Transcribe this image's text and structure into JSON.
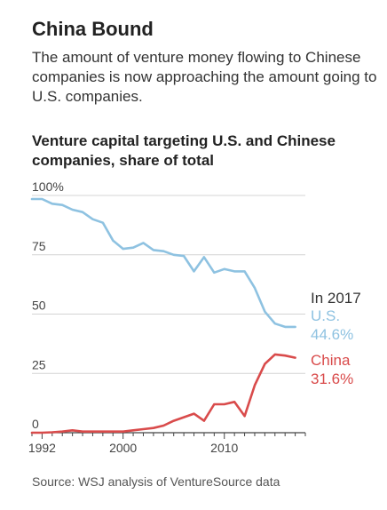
{
  "header": {
    "title": "China Bound",
    "subtitle": "The amount of venture money flowing to Chinese companies is now approaching the amount going to U.S. companies."
  },
  "chart_data": {
    "type": "line",
    "title": "Venture capital targeting U.S. and Chinese companies, share of total",
    "xlabel": "",
    "ylabel": "",
    "xlim": [
      1991,
      2018
    ],
    "ylim": [
      0,
      100
    ],
    "y_ticks": [
      0,
      25,
      50,
      75,
      100
    ],
    "y_tick_labels": [
      "0",
      "25",
      "50",
      "75",
      "100%"
    ],
    "x_ticks": [
      1992,
      2000,
      2010
    ],
    "x_tick_labels": [
      "1992",
      "2000",
      "2010"
    ],
    "grid": true,
    "annotation_header": "In 2017",
    "series": [
      {
        "name": "U.S.",
        "color": "#8ec2e1",
        "end_label": "44.6%",
        "x": [
          1991,
          1992,
          1993,
          1994,
          1995,
          1996,
          1997,
          1998,
          1999,
          2000,
          2001,
          2002,
          2003,
          2004,
          2005,
          2006,
          2007,
          2008,
          2009,
          2010,
          2011,
          2012,
          2013,
          2014,
          2015,
          2016,
          2017
        ],
        "values": [
          98.5,
          98.5,
          96.5,
          96,
          94,
          93,
          90,
          88.5,
          81,
          77.5,
          78,
          80,
          77,
          76.5,
          75,
          74.5,
          68,
          74,
          67.5,
          69,
          68,
          68,
          61,
          51,
          46,
          44.6,
          44.6
        ]
      },
      {
        "name": "China",
        "color": "#d94b4b",
        "end_label": "31.6%",
        "x": [
          1991,
          1992,
          1993,
          1994,
          1995,
          1996,
          1997,
          1998,
          1999,
          2000,
          2001,
          2002,
          2003,
          2004,
          2005,
          2006,
          2007,
          2008,
          2009,
          2010,
          2011,
          2012,
          2013,
          2014,
          2015,
          2016,
          2017
        ],
        "values": [
          0,
          0,
          0.2,
          0.5,
          1,
          0.5,
          0.5,
          0.5,
          0.5,
          0.5,
          1,
          1.5,
          2,
          3,
          5,
          6.5,
          8,
          5,
          12,
          12,
          13,
          7,
          20,
          29,
          33,
          32.5,
          31.6
        ]
      }
    ]
  },
  "footer": {
    "source": "Source: WSJ analysis of VentureSource data"
  }
}
